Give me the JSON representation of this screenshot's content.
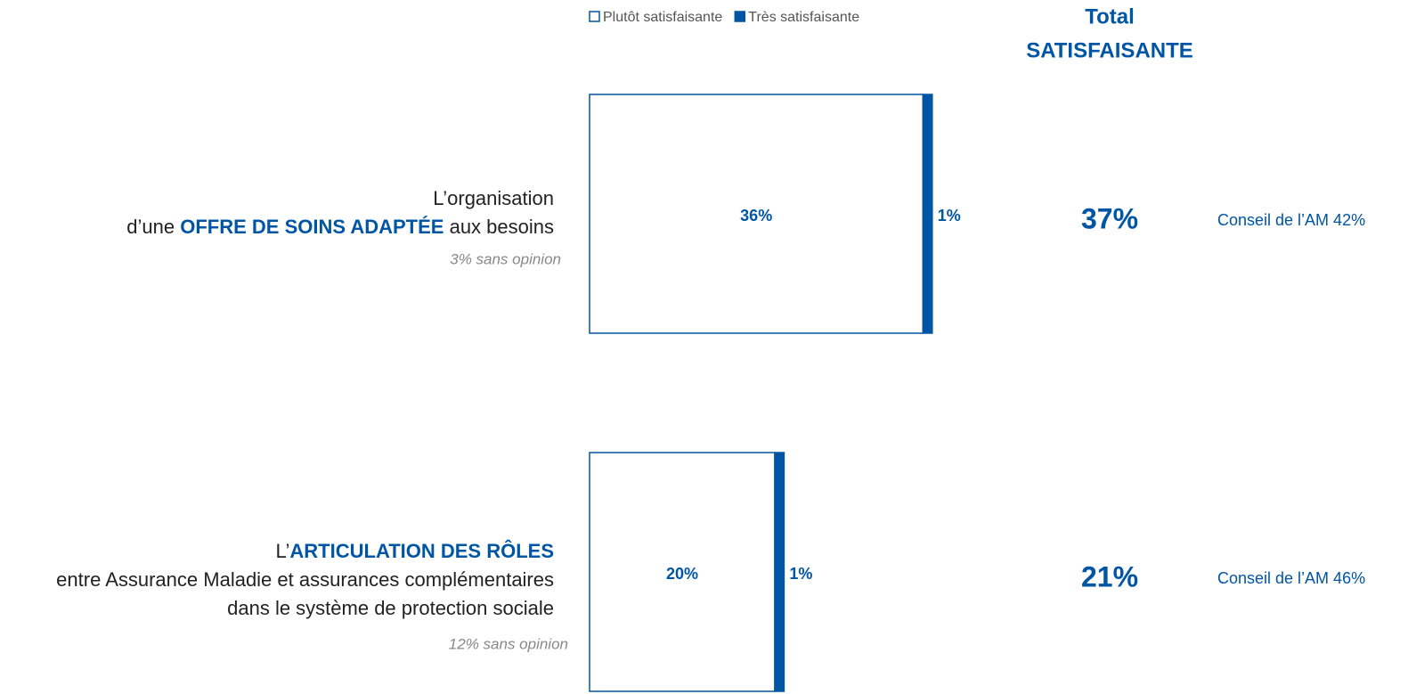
{
  "chart_data": {
    "type": "stacked_barh",
    "total_header": [
      "Total",
      "SATISFAISANTE"
    ],
    "categories": [
      {
        "lines": [
          [
            {
              "text": "L’organisation"
            }
          ],
          [
            {
              "text": "d’une "
            },
            {
              "text": "OFFRE DE SOINS ADAPTÉE",
              "emphasis": true
            },
            {
              "text": " aux besoins"
            }
          ]
        ],
        "note": "3% sans opinion"
      },
      {
        "lines": [
          [
            {
              "text": "L’"
            },
            {
              "text": "ARTICULATION DES RÔLES",
              "emphasis": true
            }
          ],
          [
            {
              "text": "entre Assurance Maladie et assurances complémentaires"
            }
          ],
          [
            {
              "text": "dans le système de protection sociale"
            }
          ]
        ],
        "note": "12% sans opinion"
      }
    ],
    "series": [
      {
        "name": "Plutôt satisfaisante",
        "color": "#ffffff",
        "values": [
          36,
          20
        ],
        "value_labels": [
          "36%",
          "20%"
        ]
      },
      {
        "name": "Très satisfaisante",
        "color": "#0055a4",
        "values": [
          1,
          1
        ],
        "value_labels": [
          "1%",
          "1%"
        ]
      }
    ],
    "totals": [
      37,
      21
    ],
    "total_labels": [
      "37%",
      "21%"
    ],
    "comparisons": [
      "Conseil de l’AM 42%",
      "Conseil de l’AM 46%"
    ]
  }
}
